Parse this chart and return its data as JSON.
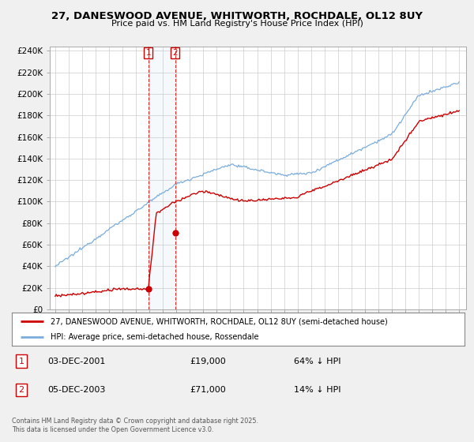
{
  "title": "27, DANESWOOD AVENUE, WHITWORTH, ROCHDALE, OL12 8UY",
  "subtitle": "Price paid vs. HM Land Registry's House Price Index (HPI)",
  "ylim": [
    0,
    244000
  ],
  "yticks": [
    0,
    20000,
    40000,
    60000,
    80000,
    100000,
    120000,
    140000,
    160000,
    180000,
    200000,
    220000,
    240000
  ],
  "hpi_color": "#7aaddc",
  "price_color": "#cc0000",
  "transaction1_date": 2001.92,
  "transaction1_price": 19000,
  "transaction2_date": 2003.92,
  "transaction2_price": 71000,
  "legend_property": "27, DANESWOOD AVENUE, WHITWORTH, ROCHDALE, OL12 8UY (semi-detached house)",
  "legend_hpi": "HPI: Average price, semi-detached house, Rossendale",
  "table_row1": [
    "1",
    "03-DEC-2001",
    "£19,000",
    "64% ↓ HPI"
  ],
  "table_row2": [
    "2",
    "05-DEC-2003",
    "£71,000",
    "14% ↓ HPI"
  ],
  "footnote": "Contains HM Land Registry data © Crown copyright and database right 2025.\nThis data is licensed under the Open Government Licence v3.0.",
  "background_color": "#f0f0f0",
  "plot_bg_color": "#ffffff",
  "grid_color": "#cccccc"
}
